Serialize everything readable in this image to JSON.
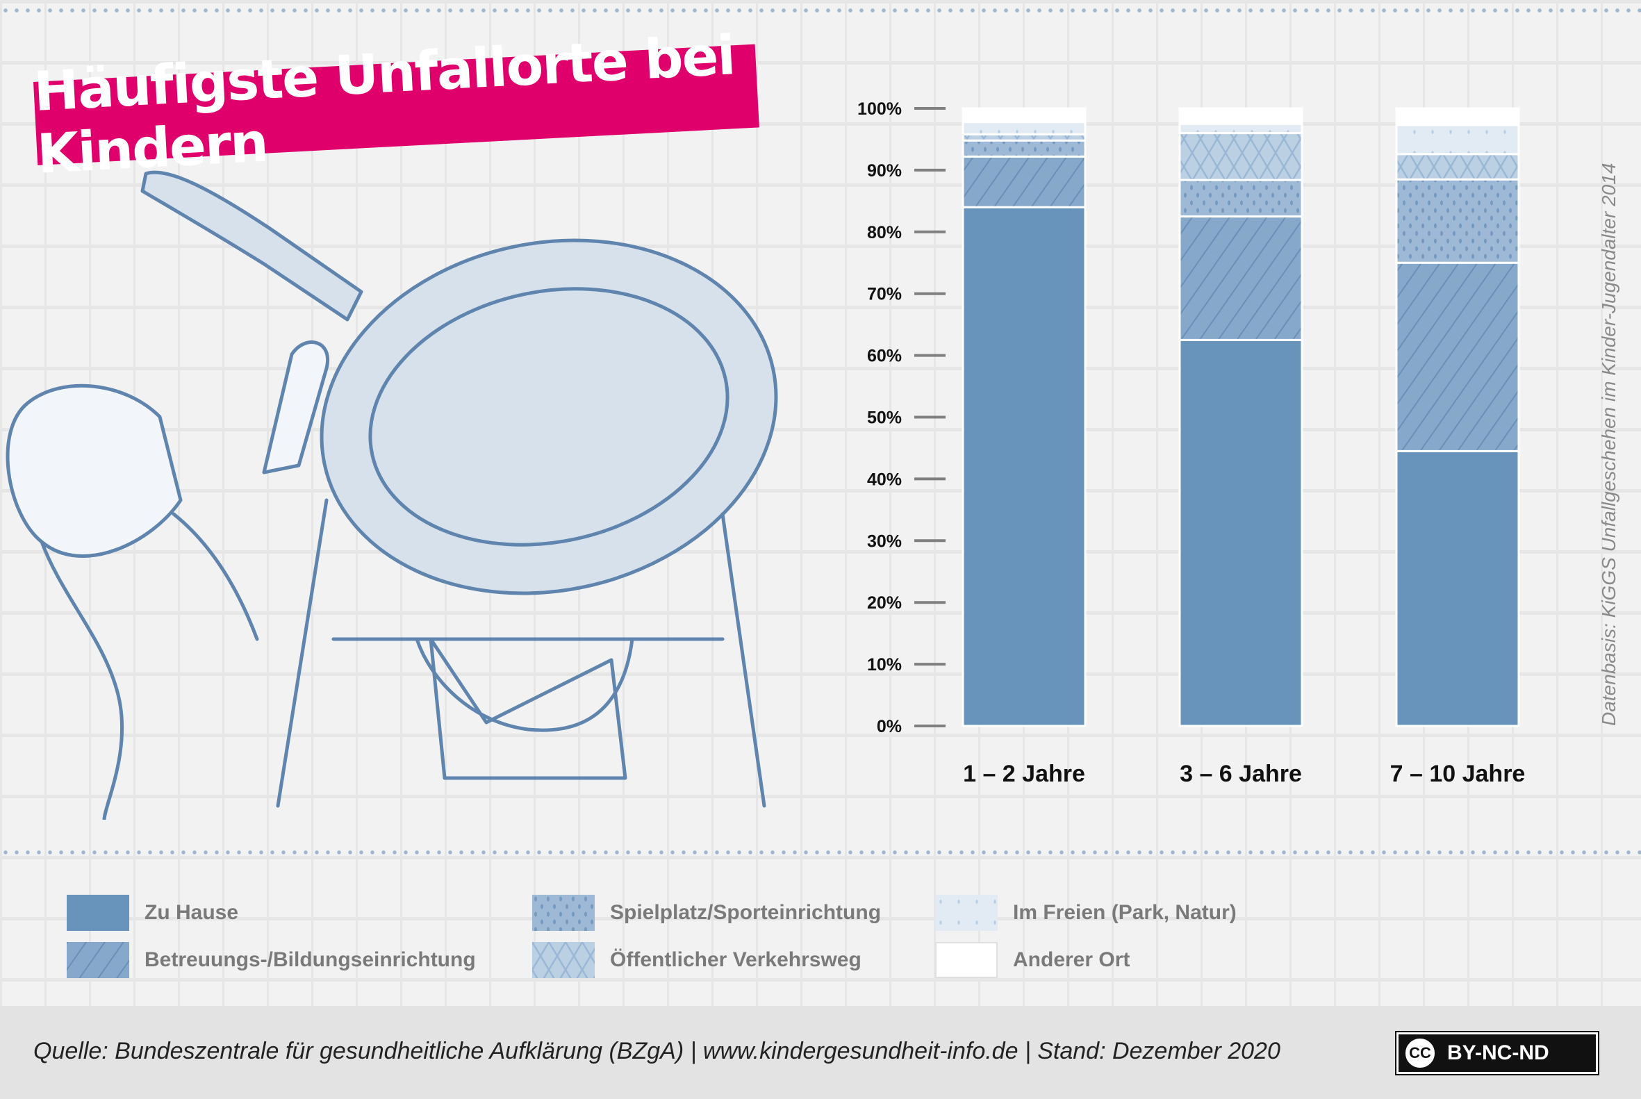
{
  "title": "Häufigste Unfallorte bei Kindern",
  "side_note": "Datenbasis: KiGGS Unfallgeschehen im Kinder-Jugendalter 2014",
  "footer": {
    "source": "Quelle: Bundeszentrale für gesundheitliche Aufklärung (BZgA) | www.kindergesundheit-info.de | Stand: Dezember 2020",
    "license_icon": "CC",
    "license_label": "BY-NC-ND"
  },
  "chart_data": {
    "type": "bar",
    "stacked": true,
    "title": "Häufigste Unfallorte bei Kindern",
    "xlabel": "",
    "ylabel": "",
    "ylim": [
      0,
      100
    ],
    "yticks": [
      "0%",
      "10%",
      "20%",
      "30%",
      "40%",
      "50%",
      "60%",
      "70%",
      "80%",
      "90%",
      "100%"
    ],
    "categories": [
      "1 – 2  Jahre",
      "3 – 6   Jahre",
      "7 – 10 Jahre"
    ],
    "legend_position": "bottom",
    "grid": true,
    "series": [
      {
        "name": "Zu Hause",
        "values": [
          84,
          62.5,
          44.5
        ],
        "color": "#6894bc",
        "pattern": "solid"
      },
      {
        "name": "Betreuungs-/Bildungseinrichtung",
        "values": [
          8.2,
          20,
          30.5
        ],
        "color": "#86a8cb",
        "pattern": "hatch"
      },
      {
        "name": "Spielplatz/Sporteinrichtung",
        "values": [
          2.6,
          5.9,
          13.5
        ],
        "color": "#9db9d6",
        "pattern": "dots"
      },
      {
        "name": "Öffentlicher Verkehrsweg",
        "values": [
          1.0,
          7.6,
          4.1
        ],
        "color": "#bcd0e4",
        "pattern": "crosshatch"
      },
      {
        "name": "Im Freien (Park, Natur)",
        "values": [
          2.0,
          1.5,
          4.7
        ],
        "color": "#dfe8f2",
        "pattern": "light-dots"
      },
      {
        "name": "Anderer Ort",
        "values": [
          2.2,
          2.5,
          2.7
        ],
        "color": "#ffffff",
        "pattern": "solid"
      }
    ]
  },
  "legend": {
    "items": [
      {
        "label": "Zu Hause"
      },
      {
        "label": "Betreuungs-/Bildungseinrichtung"
      },
      {
        "label": "Spielplatz/Sporteinrichtung"
      },
      {
        "label": "Öffentlicher Verkehrsweg"
      },
      {
        "label": "Im Freien (Park, Natur)"
      },
      {
        "label": "Anderer Ort"
      }
    ]
  }
}
